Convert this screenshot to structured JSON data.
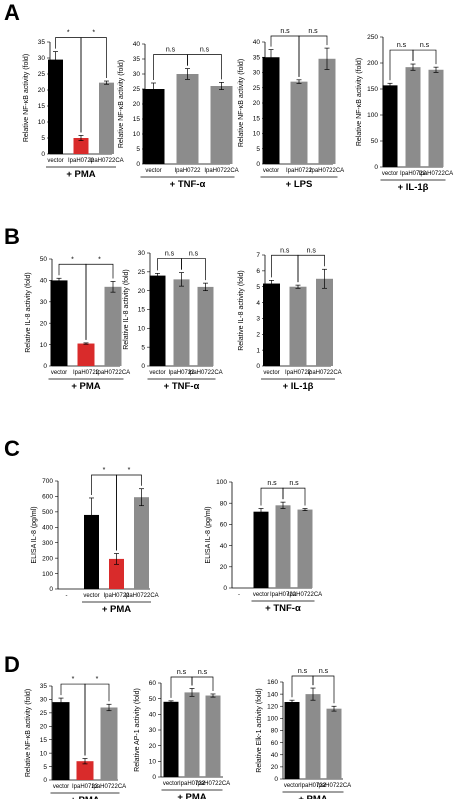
{
  "panels": [
    "A",
    "B",
    "C",
    "D"
  ],
  "colors": {
    "vector": "#000000",
    "IpaH0722": "#d92b2b",
    "IpaH0722CA": "#8c8c8c"
  },
  "chart_data": [
    {
      "panel": "A",
      "type": "bar",
      "ylabel": "Relative NF-κB activity (fold)",
      "ylim": [
        0,
        35
      ],
      "yticks": [
        0,
        5,
        10,
        15,
        20,
        25,
        30,
        35
      ],
      "categories": [
        "vector",
        "IpaH0722",
        "IpaH0722CA"
      ],
      "values": [
        29.5,
        5,
        22.3
      ],
      "errors": [
        2.5,
        0.8,
        0.5
      ],
      "colors": [
        "#000000",
        "#d92b2b",
        "#8c8c8c"
      ],
      "condition": "+ PMA",
      "sig": [
        {
          "from": 0,
          "to": 1,
          "label": "*"
        },
        {
          "from": 1,
          "to": 2,
          "label": "*"
        }
      ]
    },
    {
      "panel": "A",
      "type": "bar",
      "ylabel": "Relative NF-κB activity (fold)",
      "ylim": [
        0,
        40
      ],
      "yticks": [
        0,
        5,
        10,
        15,
        20,
        25,
        30,
        35,
        40
      ],
      "categories": [
        "vector",
        "IpaH0722",
        "IpaH0722CA"
      ],
      "values": [
        25,
        30,
        26
      ],
      "errors": [
        2,
        1.8,
        1.2
      ],
      "colors": [
        "#000000",
        "#8c8c8c",
        "#8c8c8c"
      ],
      "condition": "+ TNF-α",
      "sig": [
        {
          "from": 0,
          "to": 1,
          "label": "n.s"
        },
        {
          "from": 1,
          "to": 2,
          "label": "n.s"
        }
      ]
    },
    {
      "panel": "A",
      "type": "bar",
      "ylabel": "Relative NF-κB activity (fold)",
      "ylim": [
        0,
        40
      ],
      "yticks": [
        0,
        5,
        10,
        15,
        20,
        25,
        30,
        35,
        40
      ],
      "categories": [
        "vector",
        "IpaH0722",
        "IpaH0722CA"
      ],
      "values": [
        35,
        27,
        34.5
      ],
      "errors": [
        2.5,
        0.6,
        3.5
      ],
      "colors": [
        "#000000",
        "#8c8c8c",
        "#8c8c8c"
      ],
      "condition": "+ LPS",
      "sig": [
        {
          "from": 0,
          "to": 1,
          "label": "n.s"
        },
        {
          "from": 1,
          "to": 2,
          "label": "n.s"
        }
      ]
    },
    {
      "panel": "A",
      "type": "bar",
      "ylabel": "Relative NF-κB activity (fold)",
      "ylim": [
        0,
        250
      ],
      "yticks": [
        0,
        50,
        100,
        150,
        200,
        250
      ],
      "categories": [
        "vector",
        "IpaH0722",
        "IpaH0722CA"
      ],
      "values": [
        157,
        192,
        187
      ],
      "errors": [
        4,
        6,
        5
      ],
      "colors": [
        "#000000",
        "#8c8c8c",
        "#8c8c8c"
      ],
      "condition": "+ IL-1β",
      "sig": [
        {
          "from": 0,
          "to": 1,
          "label": "n.s"
        },
        {
          "from": 1,
          "to": 2,
          "label": "n.s"
        }
      ]
    },
    {
      "panel": "B",
      "type": "bar",
      "ylabel": "Relative IL-8 activity (fold)",
      "ylim": [
        0,
        50
      ],
      "yticks": [
        0,
        10,
        20,
        30,
        40,
        50
      ],
      "categories": [
        "vector",
        "IpaH0722",
        "IpaH0722CA"
      ],
      "values": [
        40,
        10.5,
        37
      ],
      "errors": [
        1,
        0.3,
        2.5
      ],
      "colors": [
        "#000000",
        "#d92b2b",
        "#8c8c8c"
      ],
      "condition": "+ PMA",
      "sig": [
        {
          "from": 0,
          "to": 1,
          "label": "*"
        },
        {
          "from": 1,
          "to": 2,
          "label": "*"
        }
      ]
    },
    {
      "panel": "B",
      "type": "bar",
      "ylabel": "Relative IL-8 activity (fold)",
      "ylim": [
        0,
        30
      ],
      "yticks": [
        0,
        5,
        10,
        15,
        20,
        25,
        30
      ],
      "categories": [
        "vector",
        "IpaH0722",
        "IpaH0722CA"
      ],
      "values": [
        24,
        23,
        21
      ],
      "errors": [
        0.6,
        1.8,
        1
      ],
      "colors": [
        "#000000",
        "#8c8c8c",
        "#8c8c8c"
      ],
      "condition": "+ TNF-α",
      "sig": [
        {
          "from": 0,
          "to": 1,
          "label": "n.s"
        },
        {
          "from": 1,
          "to": 2,
          "label": "n.s"
        }
      ]
    },
    {
      "panel": "B",
      "type": "bar",
      "ylabel": "Relative IL-8 activity (fold)",
      "ylim": [
        0,
        7
      ],
      "yticks": [
        0,
        1,
        2,
        3,
        4,
        5,
        6,
        7
      ],
      "categories": [
        "vector",
        "IpaH0722",
        "IpaH0722CA"
      ],
      "values": [
        5.2,
        5,
        5.5
      ],
      "errors": [
        0.2,
        0.1,
        0.6
      ],
      "colors": [
        "#000000",
        "#8c8c8c",
        "#8c8c8c"
      ],
      "condition": "+ IL-1β",
      "sig": [
        {
          "from": 0,
          "to": 1,
          "label": "n.s"
        },
        {
          "from": 1,
          "to": 2,
          "label": "n.s"
        }
      ]
    },
    {
      "panel": "C",
      "type": "bar",
      "ylabel": "ELISA IL-8 (pg/ml)",
      "ylim": [
        0,
        700
      ],
      "yticks": [
        0,
        100,
        200,
        300,
        400,
        500,
        600,
        700
      ],
      "categories": [
        "-",
        "vector",
        "IpaH0722",
        "IpaH0722CA"
      ],
      "values": [
        0,
        480,
        195,
        595
      ],
      "errors": [
        0,
        110,
        35,
        55
      ],
      "colors": [
        "#000000",
        "#000000",
        "#d92b2b",
        "#8c8c8c"
      ],
      "condition": "+ PMA",
      "condition_span": [
        1,
        3
      ],
      "sig": [
        {
          "from": 1,
          "to": 2,
          "label": "*"
        },
        {
          "from": 2,
          "to": 3,
          "label": "*"
        }
      ]
    },
    {
      "panel": "C",
      "type": "bar",
      "ylabel": "ELISA IL-8 (pg/ml)",
      "ylim": [
        0,
        100
      ],
      "yticks": [
        0,
        20,
        40,
        60,
        80,
        100
      ],
      "categories": [
        "-",
        "vector",
        "IpaH0722",
        "IpaH0722CA"
      ],
      "values": [
        0,
        72,
        78,
        74
      ],
      "errors": [
        0,
        3,
        3,
        1
      ],
      "colors": [
        "#000000",
        "#000000",
        "#8c8c8c",
        "#8c8c8c"
      ],
      "condition": "+ TNF-α",
      "condition_span": [
        1,
        3
      ],
      "sig": [
        {
          "from": 1,
          "to": 2,
          "label": "n.s"
        },
        {
          "from": 2,
          "to": 3,
          "label": "n.s"
        }
      ]
    },
    {
      "panel": "D",
      "type": "bar",
      "ylabel": "Relative NF-κB activity (fold)",
      "ylim": [
        0,
        35
      ],
      "yticks": [
        0,
        5,
        10,
        15,
        20,
        25,
        30,
        35
      ],
      "categories": [
        "vector",
        "IpaH0722",
        "IpaH0722CA"
      ],
      "values": [
        29,
        7,
        27
      ],
      "errors": [
        1.5,
        1,
        1.2
      ],
      "colors": [
        "#000000",
        "#d92b2b",
        "#8c8c8c"
      ],
      "condition": "+ PMA",
      "sig": [
        {
          "from": 0,
          "to": 1,
          "label": "*"
        },
        {
          "from": 1,
          "to": 2,
          "label": "*"
        }
      ]
    },
    {
      "panel": "D",
      "type": "bar",
      "ylabel": "Relative AP-1 activity (fold)",
      "ylim": [
        0,
        60
      ],
      "yticks": [
        0,
        10,
        20,
        30,
        40,
        50,
        60
      ],
      "categories": [
        "vector",
        "IpaH0722",
        "IpaH0722CA"
      ],
      "values": [
        48,
        54,
        52
      ],
      "errors": [
        0.6,
        2.5,
        1
      ],
      "colors": [
        "#000000",
        "#8c8c8c",
        "#8c8c8c"
      ],
      "condition": "+ PMA",
      "sig": [
        {
          "from": 0,
          "to": 1,
          "label": "n.s"
        },
        {
          "from": 1,
          "to": 2,
          "label": "n.s"
        }
      ]
    },
    {
      "panel": "D",
      "type": "bar",
      "ylabel": "Relative Elk-1 activity (fold)",
      "ylim": [
        0,
        160
      ],
      "yticks": [
        0,
        20,
        40,
        60,
        80,
        100,
        120,
        140,
        160
      ],
      "categories": [
        "vector",
        "IpaH0722",
        "IpaH0722CA"
      ],
      "values": [
        127,
        140,
        116
      ],
      "errors": [
        3,
        10,
        4
      ],
      "colors": [
        "#000000",
        "#8c8c8c",
        "#8c8c8c"
      ],
      "condition": "+ PMA",
      "sig": [
        {
          "from": 0,
          "to": 1,
          "label": "n.s"
        },
        {
          "from": 1,
          "to": 2,
          "label": "n.s"
        }
      ]
    }
  ]
}
